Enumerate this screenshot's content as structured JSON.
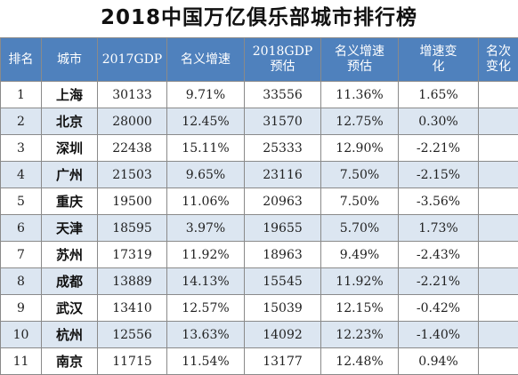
{
  "title": "2018中国万亿俱乐部城市排行榜",
  "headers": [
    "排名",
    "城市",
    "2017GDP",
    "名义增速",
    "2018GDP预估",
    "名义增速预估",
    "增速变化",
    "名次变化"
  ],
  "rows": [
    [
      "1",
      "上海",
      "30133",
      "9.71%",
      "33556",
      "11.36%",
      "1.65%",
      ""
    ],
    [
      "2",
      "北京",
      "28000",
      "12.45%",
      "31570",
      "12.75%",
      "0.30%",
      ""
    ],
    [
      "3",
      "深圳",
      "22438",
      "15.11%",
      "25333",
      "12.90%",
      "-2.21%",
      ""
    ],
    [
      "4",
      "广州",
      "21503",
      "9.65%",
      "23116",
      "7.50%",
      "-2.15%",
      ""
    ],
    [
      "5",
      "重庆",
      "19500",
      "11.06%",
      "20963",
      "7.50%",
      "-3.56%",
      ""
    ],
    [
      "6",
      "天津",
      "18595",
      "3.97%",
      "19655",
      "5.70%",
      "1.73%",
      ""
    ],
    [
      "7",
      "苏州",
      "17319",
      "11.92%",
      "18963",
      "9.49%",
      "-2.43%",
      ""
    ],
    [
      "8",
      "成都",
      "13889",
      "14.13%",
      "15545",
      "11.92%",
      "-2.21%",
      ""
    ],
    [
      "9",
      "武汉",
      "13410",
      "12.57%",
      "15039",
      "12.15%",
      "-0.42%",
      ""
    ],
    [
      "10",
      "杭州",
      "12556",
      "13.63%",
      "14092",
      "12.23%",
      "-1.40%",
      ""
    ],
    [
      "11",
      "南京",
      "11715",
      "11.54%",
      "13177",
      "12.48%",
      "0.94%",
      ""
    ]
  ]
}
